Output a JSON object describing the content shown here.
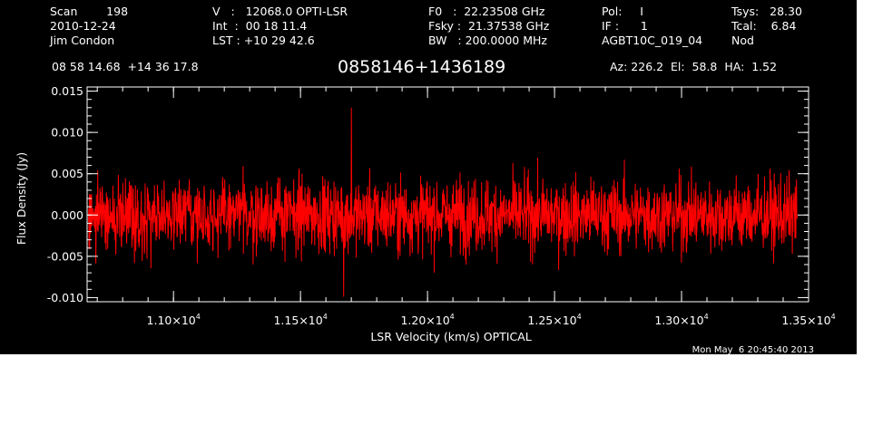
{
  "header": {
    "col1": [
      "Scan        198",
      "2010-12-24",
      "Jim Condon"
    ],
    "col2": [
      "V   :   12068.0 OPTI-LSR",
      "Int  :  00 18 11.4",
      "LST : +10 29 42.6"
    ],
    "col3": [
      "F0   :  22.23508 GHz",
      "Fsky :  21.37538 GHz",
      "BW   : 200.0000 MHz"
    ],
    "col4": [
      "Pol:     I",
      "IF :      1",
      "AGBT10C_019_04"
    ],
    "col5": [
      "Tsys:   28.30",
      "Tcal:    6.84",
      "Nod"
    ],
    "coords": "08 58 14.68  +14 36 17.8",
    "source": "0858146+1436189",
    "azelha": "Az: 226.2  El:  58.8  HA:  1.52"
  },
  "footer": {
    "timestamp": "Mon May  6 20:45:40 2013"
  },
  "chart_data": {
    "type": "line",
    "xlabel": "LSR Velocity (km/s) OPTICAL",
    "ylabel": "Flux Density (Jy)",
    "xlim": [
      10660,
      13500
    ],
    "ylim": [
      -0.0105,
      0.0155
    ],
    "x_ticks": [
      {
        "value": 11000,
        "label": "1.10×10",
        "exp": "4"
      },
      {
        "value": 11500,
        "label": "1.15×10",
        "exp": "4"
      },
      {
        "value": 12000,
        "label": "1.20×10",
        "exp": "4"
      },
      {
        "value": 12500,
        "label": "1.25×10",
        "exp": "4"
      },
      {
        "value": 13000,
        "label": "1.30×10",
        "exp": "4"
      },
      {
        "value": 13500,
        "label": "1.35×10",
        "exp": "4"
      }
    ],
    "y_ticks": [
      {
        "value": 0.015,
        "label": "0.015"
      },
      {
        "value": 0.01,
        "label": "0.010"
      },
      {
        "value": 0.005,
        "label": "0.005"
      },
      {
        "value": 0.0,
        "label": "0.000"
      },
      {
        "value": -0.005,
        "label": "-0.005"
      },
      {
        "value": -0.01,
        "label": "-0.010"
      }
    ],
    "series": [
      {
        "color": "#ff0000",
        "x_start": 10665,
        "x_end": 13455,
        "noise_rms_jy": 0.0022,
        "peak_max": {
          "x": 11700,
          "y": 0.013
        },
        "peak_min": {
          "x": 11670,
          "y": -0.0099
        }
      }
    ],
    "colors": {
      "background": "#000000",
      "axes": "#ffffff",
      "series": "#ff0000"
    }
  }
}
